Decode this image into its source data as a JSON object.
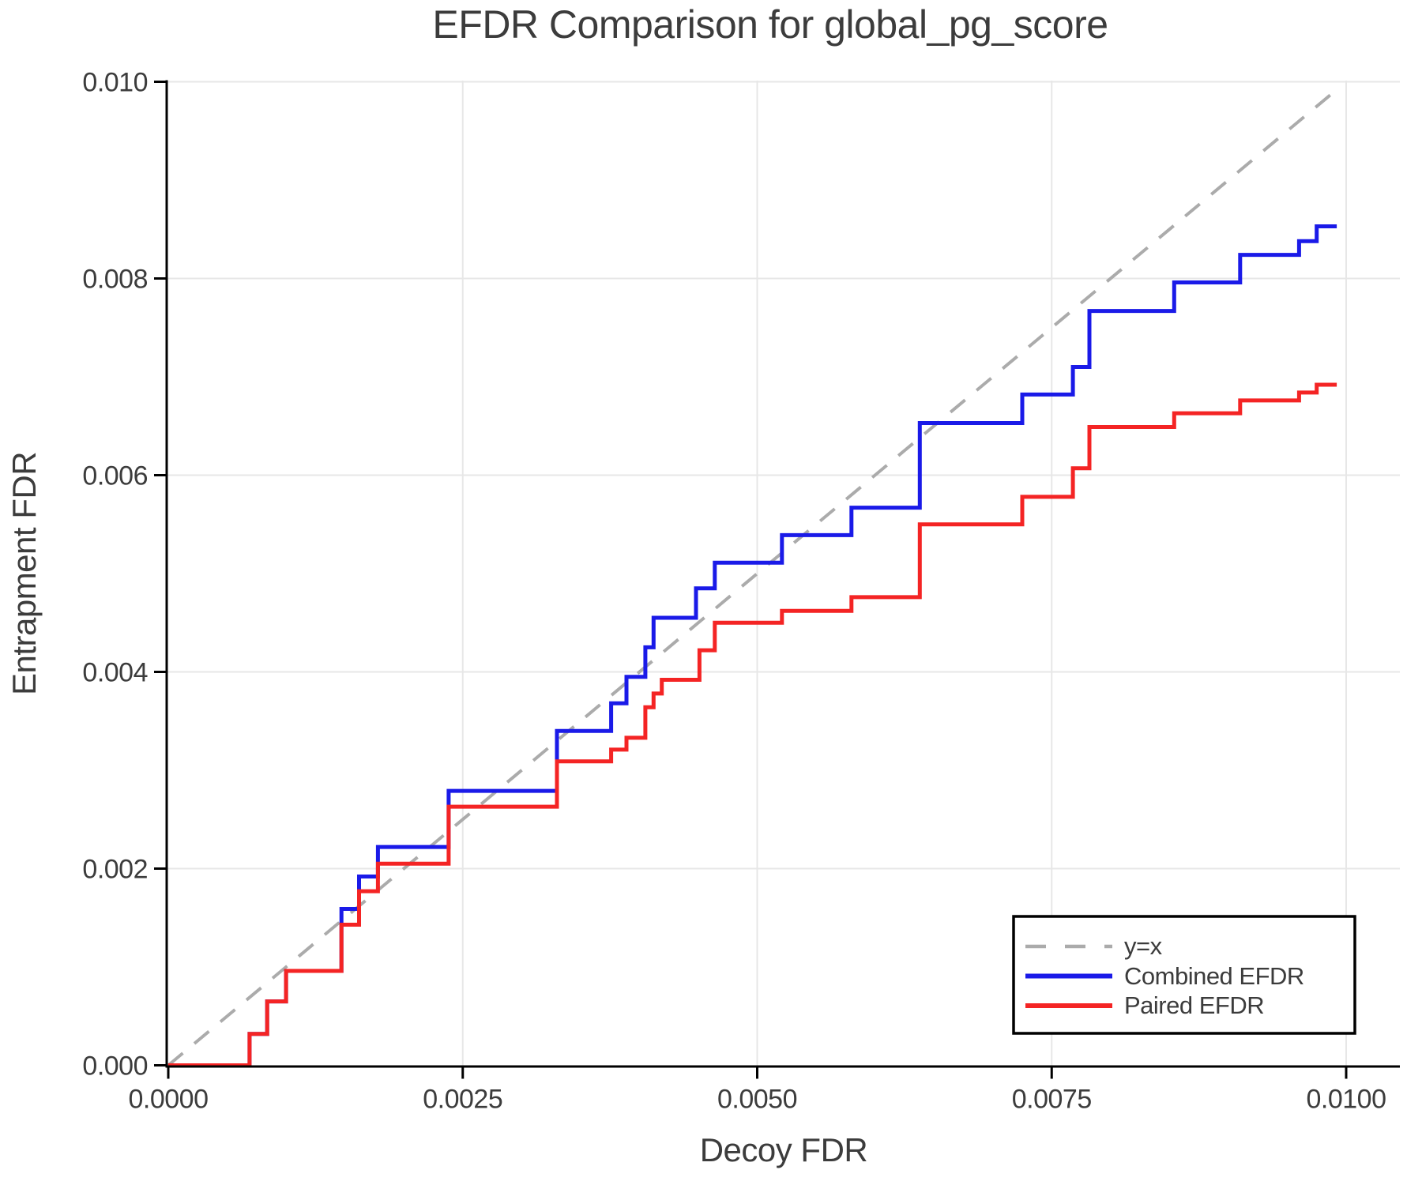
{
  "chart_data": {
    "type": "line",
    "subtype": "step-post",
    "title": "EFDR Comparison for global_pg_score",
    "xlabel": "Decoy FDR",
    "ylabel": "Entrapment FDR",
    "xlim": [
      0,
      0.010456
    ],
    "ylim": [
      0,
      0.01
    ],
    "grid": true,
    "x_ticks": [
      0.0,
      0.0025,
      0.005,
      0.0075,
      0.01
    ],
    "x_tick_labels": [
      "0.0000",
      "0.0025",
      "0.0050",
      "0.0075",
      "0.0100"
    ],
    "y_ticks": [
      0.0,
      0.002,
      0.004,
      0.006,
      0.008,
      0.01
    ],
    "y_tick_labels": [
      "0.000",
      "0.002",
      "0.004",
      "0.006",
      "0.008",
      "0.010"
    ],
    "legend_position": "lower-right-inside",
    "colors": {
      "combined": "#1A1AE8",
      "paired": "#F42424",
      "reference": "#ABABAB",
      "grid": "#E7E7E7",
      "axis": "#000000",
      "text": "#3C3C3C"
    },
    "reference_line": {
      "label": "y=x",
      "style": "dashed",
      "color": "#ABABAB",
      "from": [
        0,
        0
      ],
      "to": [
        0.00995,
        0.00995
      ]
    },
    "series": [
      {
        "name": "Combined EFDR",
        "color": "#1A1AE8",
        "step": "post",
        "start": [
          0,
          0
        ],
        "x_end": 0.00992,
        "points": [
          [
            0.00069,
            0.00032
          ],
          [
            0.00084,
            0.00065
          ],
          [
            0.001,
            0.00096
          ],
          [
            0.00147,
            0.00159
          ],
          [
            0.00162,
            0.00192
          ],
          [
            0.00178,
            0.00222
          ],
          [
            0.00238,
            0.00279
          ],
          [
            0.0033,
            0.0034
          ],
          [
            0.00376,
            0.00368
          ],
          [
            0.00389,
            0.00395
          ],
          [
            0.00405,
            0.00425
          ],
          [
            0.00412,
            0.00455
          ],
          [
            0.00448,
            0.00485
          ],
          [
            0.00464,
            0.00511
          ],
          [
            0.00521,
            0.00539
          ],
          [
            0.0058,
            0.00567
          ],
          [
            0.00638,
            0.00653
          ],
          [
            0.00725,
            0.00682
          ],
          [
            0.00768,
            0.0071
          ],
          [
            0.00782,
            0.00767
          ],
          [
            0.00854,
            0.00796
          ],
          [
            0.0091,
            0.00824
          ],
          [
            0.0096,
            0.00838
          ],
          [
            0.00975,
            0.00853
          ]
        ]
      },
      {
        "name": "Paired EFDR",
        "color": "#F42424",
        "step": "post",
        "start": [
          0,
          0
        ],
        "x_end": 0.00992,
        "points": [
          [
            0.00069,
            0.00032
          ],
          [
            0.00084,
            0.00065
          ],
          [
            0.001,
            0.00096
          ],
          [
            0.00147,
            0.00143
          ],
          [
            0.00162,
            0.00177
          ],
          [
            0.00178,
            0.00205
          ],
          [
            0.00238,
            0.00263
          ],
          [
            0.0033,
            0.00309
          ],
          [
            0.00376,
            0.00321
          ],
          [
            0.00389,
            0.00333
          ],
          [
            0.00405,
            0.00364
          ],
          [
            0.00412,
            0.00378
          ],
          [
            0.00419,
            0.00392
          ],
          [
            0.00451,
            0.00422
          ],
          [
            0.00464,
            0.0045
          ],
          [
            0.00521,
            0.00462
          ],
          [
            0.0058,
            0.00476
          ],
          [
            0.00638,
            0.0055
          ],
          [
            0.00725,
            0.00578
          ],
          [
            0.00768,
            0.00607
          ],
          [
            0.00782,
            0.00649
          ],
          [
            0.00854,
            0.00663
          ],
          [
            0.0091,
            0.00676
          ],
          [
            0.0096,
            0.00684
          ],
          [
            0.00975,
            0.00692
          ]
        ]
      }
    ]
  }
}
